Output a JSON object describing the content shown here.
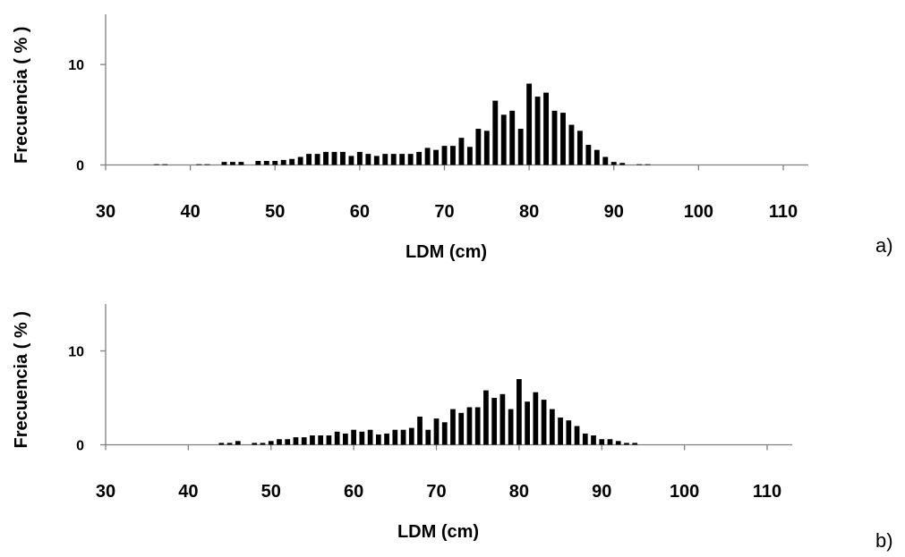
{
  "chart_data": [
    {
      "type": "bar",
      "panel_label": "a)",
      "xlabel": "LDM (cm)",
      "ylabel": "Frecuencia ( % )",
      "xlim": [
        30,
        110
      ],
      "ylim": [
        0,
        15
      ],
      "x_ticks": [
        30,
        40,
        50,
        60,
        70,
        80,
        90,
        100,
        110
      ],
      "y_ticks": [
        0,
        10
      ],
      "grid": false,
      "x": [
        36,
        37,
        41,
        42,
        44,
        45,
        46,
        48,
        49,
        50,
        51,
        52,
        53,
        54,
        55,
        56,
        57,
        58,
        59,
        60,
        61,
        62,
        63,
        64,
        65,
        66,
        67,
        68,
        69,
        70,
        71,
        72,
        73,
        74,
        75,
        76,
        77,
        78,
        79,
        80,
        81,
        82,
        83,
        84,
        85,
        86,
        87,
        88,
        89,
        90,
        91,
        93,
        94
      ],
      "values": [
        0.05,
        0.05,
        0.05,
        0.05,
        0.3,
        0.3,
        0.3,
        0.4,
        0.4,
        0.4,
        0.5,
        0.6,
        0.8,
        1.1,
        1.1,
        1.3,
        1.3,
        1.3,
        0.9,
        1.3,
        1.1,
        0.9,
        1.1,
        1.1,
        1.1,
        1.1,
        1.3,
        1.7,
        1.5,
        1.9,
        1.9,
        2.7,
        1.8,
        3.6,
        3.4,
        6.4,
        5.0,
        5.4,
        3.6,
        8.1,
        6.8,
        7.2,
        5.4,
        5.2,
        4.0,
        3.4,
        2.0,
        1.5,
        0.8,
        0.3,
        0.2,
        0.05,
        0.05
      ]
    },
    {
      "type": "bar",
      "panel_label": "b)",
      "xlabel": "LDM (cm)",
      "ylabel": "Frecuencia ( % )",
      "xlim": [
        30,
        110
      ],
      "ylim": [
        0,
        15
      ],
      "x_ticks": [
        30,
        40,
        50,
        60,
        70,
        80,
        90,
        100,
        110
      ],
      "y_ticks": [
        0,
        10
      ],
      "grid": false,
      "x": [
        44,
        45,
        46,
        48,
        49,
        50,
        51,
        52,
        53,
        54,
        55,
        56,
        57,
        58,
        59,
        60,
        61,
        62,
        63,
        64,
        65,
        66,
        67,
        68,
        69,
        70,
        71,
        72,
        73,
        74,
        75,
        76,
        77,
        78,
        79,
        80,
        81,
        82,
        83,
        84,
        85,
        86,
        87,
        88,
        89,
        90,
        91,
        92,
        93,
        94
      ],
      "values": [
        0.2,
        0.2,
        0.4,
        0.2,
        0.2,
        0.4,
        0.6,
        0.6,
        0.8,
        0.8,
        1.0,
        1.0,
        1.0,
        1.4,
        1.2,
        1.6,
        1.4,
        1.6,
        1.1,
        1.2,
        1.6,
        1.6,
        1.8,
        3.0,
        1.6,
        2.8,
        2.4,
        3.8,
        3.4,
        4.0,
        4.0,
        5.8,
        5.0,
        5.4,
        3.8,
        7.0,
        4.6,
        5.6,
        4.8,
        3.8,
        2.9,
        2.6,
        2.0,
        1.2,
        1.0,
        0.6,
        0.6,
        0.4,
        0.2,
        0.2
      ]
    }
  ]
}
